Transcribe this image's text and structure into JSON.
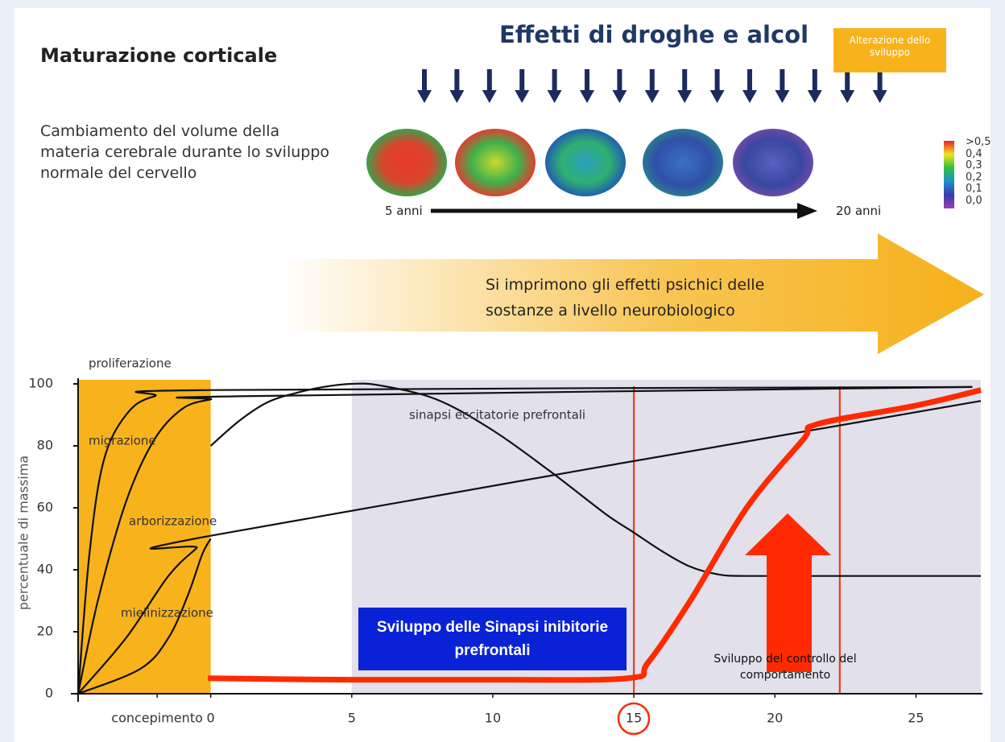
{
  "header": {
    "title": "Maturazione corticale",
    "description": "Cambiamento del volume della materia cerebrale durante lo sviluppo normale del cervello",
    "drugs_title": "Effetti di droghe e alcol",
    "badge": "Alterazione dello sviluppo"
  },
  "brain_scale": {
    "labels": [
      ">0,5",
      "0,4",
      "0,3",
      "0,2",
      "0,1",
      "0,0"
    ],
    "start": "5 anni",
    "end": "20 anni"
  },
  "banner": "Si imprimono gli effetti psichici delle sostanze a livello neurobiologico",
  "chart_data": {
    "type": "line",
    "y_label": "percentuale di massima",
    "xlim": [
      -4.7,
      27.3
    ],
    "ylim": [
      0,
      100
    ],
    "xticks": [
      {
        "value": -1.9,
        "label": "concepimento"
      },
      0,
      5,
      10,
      15,
      20,
      25
    ],
    "yticks": [
      0,
      20,
      40,
      60,
      80,
      100
    ],
    "bands": [
      {
        "x": [
          -4.7,
          0
        ],
        "color": "#f8b31c"
      },
      {
        "x": [
          5,
          27.3
        ],
        "color": "#e1e0eb"
      }
    ],
    "reference_lines": [
      15,
      22.3
    ],
    "reference_color": "#ff2a00",
    "series": [
      {
        "name": "proliferazione",
        "color": "#111111",
        "x": [
          -4.7,
          -4.3,
          -3.8,
          -3,
          -2,
          0,
          27
        ],
        "values": [
          0,
          45,
          75,
          90,
          96,
          98,
          99
        ]
      },
      {
        "name": "migrazione",
        "color": "#111111",
        "x": [
          -4.7,
          -4,
          -3,
          -2,
          -1,
          0,
          1,
          27
        ],
        "values": [
          0,
          30,
          62,
          82,
          92,
          95,
          96,
          99
        ]
      },
      {
        "name": "arborizzazione",
        "color": "#111111",
        "x": [
          -4.7,
          -3,
          -1.5,
          -0.5,
          0,
          27.3
        ],
        "values": [
          0,
          18,
          38,
          47,
          51,
          94.5
        ]
      },
      {
        "name": "mielinizzazione",
        "color": "#111111",
        "x": [
          -4.7,
          -2.5,
          -1.5,
          -0.8,
          -0.3,
          0
        ],
        "values": [
          0,
          8,
          18,
          32,
          45,
          50
        ]
      },
      {
        "name": "sinapsi eccitatorie prefrontali",
        "color": "#111111",
        "x": [
          0,
          1,
          2,
          3,
          4,
          5,
          6,
          8,
          10,
          12,
          14,
          15,
          16,
          17,
          18,
          19,
          22,
          27.3
        ],
        "values": [
          80,
          88,
          94,
          97,
          99,
          100,
          99.5,
          95,
          85,
          72,
          58,
          52,
          46,
          41,
          38.5,
          38,
          38,
          38
        ]
      },
      {
        "name": "Sviluppo delle Sinapsi inibitorie prefrontali",
        "color": "#ff2a00",
        "x": [
          -0.1,
          5,
          10,
          14.8,
          15.5,
          17,
          19,
          21,
          21.5,
          25,
          27.3
        ],
        "values": [
          5,
          4.5,
          4.5,
          5,
          10,
          30,
          60,
          82,
          87,
          93,
          98
        ]
      }
    ],
    "annotation": "Sviluppo del controllo del comportamento"
  }
}
